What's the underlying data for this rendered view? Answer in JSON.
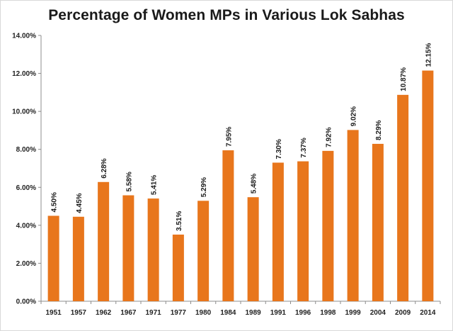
{
  "chart_data": {
    "type": "bar",
    "title": "Percentage of Women MPs in Various Lok Sabhas",
    "xlabel": "",
    "ylabel": "",
    "categories": [
      "1951",
      "1957",
      "1962",
      "1967",
      "1971",
      "1977",
      "1980",
      "1984",
      "1989",
      "1991",
      "1996",
      "1998",
      "1999",
      "2004",
      "2009",
      "2014"
    ],
    "values": [
      4.5,
      4.45,
      6.28,
      5.58,
      5.41,
      3.51,
      5.29,
      7.95,
      5.48,
      7.3,
      7.37,
      7.92,
      9.02,
      8.29,
      10.87,
      12.15
    ],
    "data_labels": [
      "4.50%",
      "4.45%",
      "6.28%",
      "5.58%",
      "5.41%",
      "3.51%",
      "5.29%",
      "7.95%",
      "5.48%",
      "7.30%",
      "7.37%",
      "7.92%",
      "9.02%",
      "8.29%",
      "10.87%",
      "12.15%"
    ],
    "ylim": [
      0,
      14
    ],
    "yticks": [
      0,
      2,
      4,
      6,
      8,
      10,
      12,
      14
    ],
    "ytick_labels": [
      "0.00%",
      "2.00%",
      "4.00%",
      "6.00%",
      "8.00%",
      "10.00%",
      "12.00%",
      "14.00%"
    ],
    "grid": false,
    "legend": "none",
    "bar_color": "#e8761c"
  }
}
